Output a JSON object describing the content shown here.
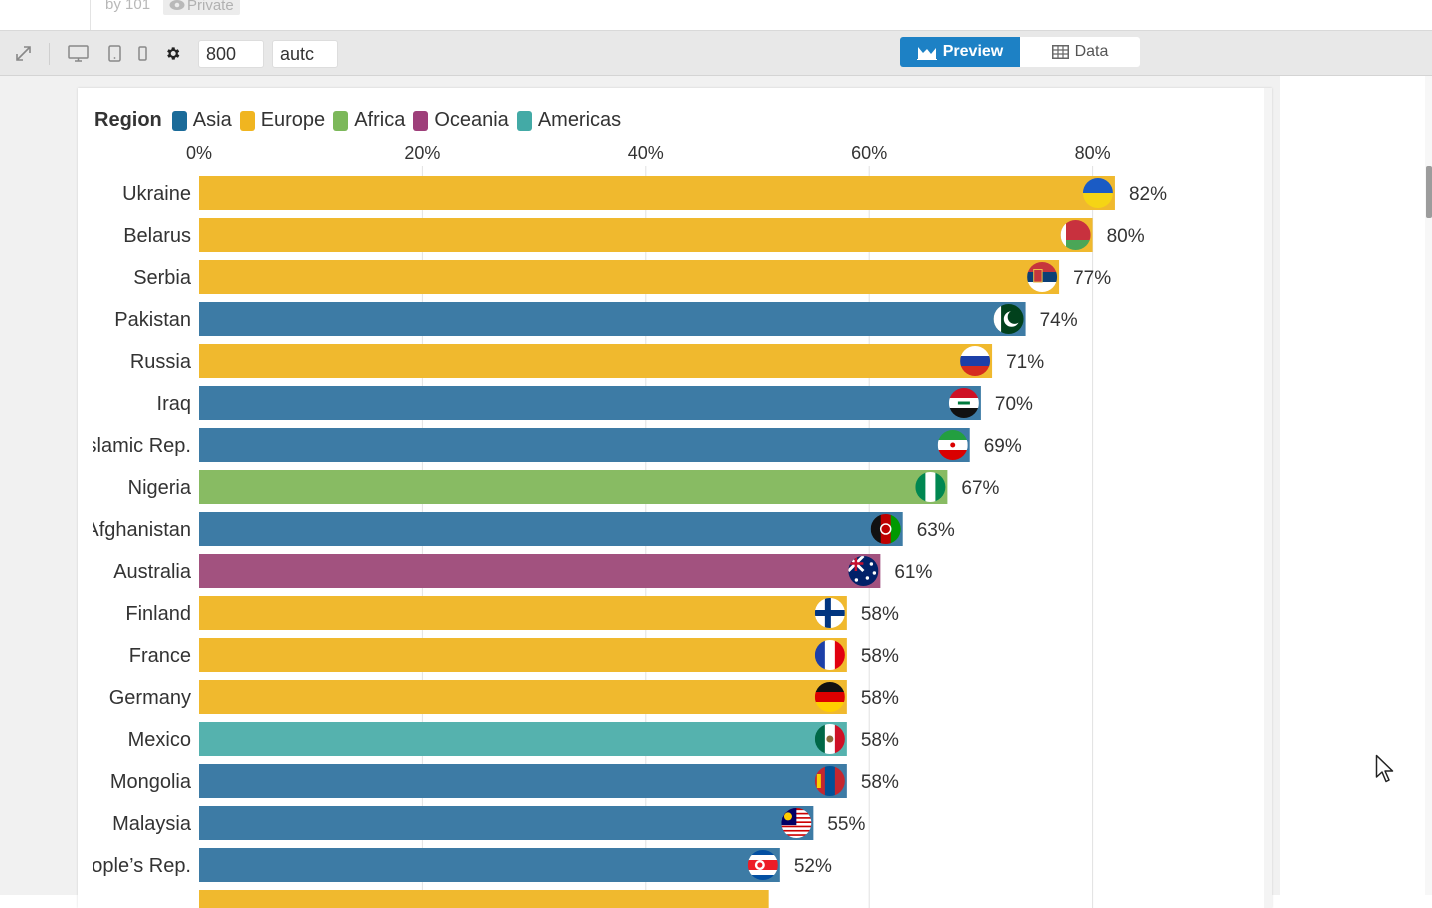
{
  "header": {
    "byline": "by 101",
    "private_label": "Private"
  },
  "toolbar": {
    "width_value": "800",
    "height_value": "autc",
    "preview_label": "Preview",
    "data_label": "Data"
  },
  "colors": {
    "accent": "#1d81c5",
    "Asia": "#3d7ba5",
    "Europe": "#f0b92e",
    "Africa": "#88bb63",
    "Oceania": "#a2527f",
    "Americas": "#55b2ae"
  },
  "legend": {
    "title": "Region",
    "items": [
      {
        "label": "Asia",
        "color": "#1b6b99"
      },
      {
        "label": "Europe",
        "color": "#f0b520"
      },
      {
        "label": "Africa",
        "color": "#7cb85a"
      },
      {
        "label": "Oceania",
        "color": "#9e3f7a"
      },
      {
        "label": "Americas",
        "color": "#43aaa6"
      }
    ]
  },
  "chart_data": {
    "type": "bar",
    "orientation": "horizontal",
    "xlim": [
      0,
      100
    ],
    "x_ticks": [
      "0%",
      "20%",
      "40%",
      "60%",
      "80%"
    ],
    "x_tick_values": [
      0,
      20,
      40,
      60,
      80
    ],
    "grid": true,
    "legend_placement": "top-left",
    "categories": [
      "Ukraine",
      "Belarus",
      "Serbia",
      "Pakistan",
      "Russia",
      "Iraq",
      "slamic Rep.",
      "Nigeria",
      "Afghanistan",
      "Australia",
      "Finland",
      "France",
      "Germany",
      "Mexico",
      "Mongolia",
      "Malaysia",
      "eople’s Rep."
    ],
    "values": [
      82,
      80,
      77,
      74,
      71,
      70,
      69,
      67,
      63,
      61,
      58,
      58,
      58,
      58,
      58,
      55,
      52
    ],
    "value_labels": [
      "82%",
      "80%",
      "77%",
      "74%",
      "71%",
      "70%",
      "69%",
      "67%",
      "63%",
      "61%",
      "58%",
      "58%",
      "58%",
      "58%",
      "58%",
      "55%",
      "52%"
    ],
    "regions": [
      "Europe",
      "Europe",
      "Europe",
      "Asia",
      "Europe",
      "Asia",
      "Asia",
      "Africa",
      "Asia",
      "Oceania",
      "Europe",
      "Europe",
      "Europe",
      "Americas",
      "Asia",
      "Asia",
      "Asia"
    ],
    "flags": [
      "ukraine-flag",
      "belarus-flag",
      "serbia-flag",
      "pakistan-flag",
      "russia-flag",
      "iraq-flag",
      "iran-flag",
      "nigeria-flag",
      "afghanistan-flag",
      "australia-flag",
      "finland-flag",
      "france-flag",
      "germany-flag",
      "mexico-flag",
      "mongolia-flag",
      "malaysia-flag",
      "north-korea-flag"
    ]
  }
}
